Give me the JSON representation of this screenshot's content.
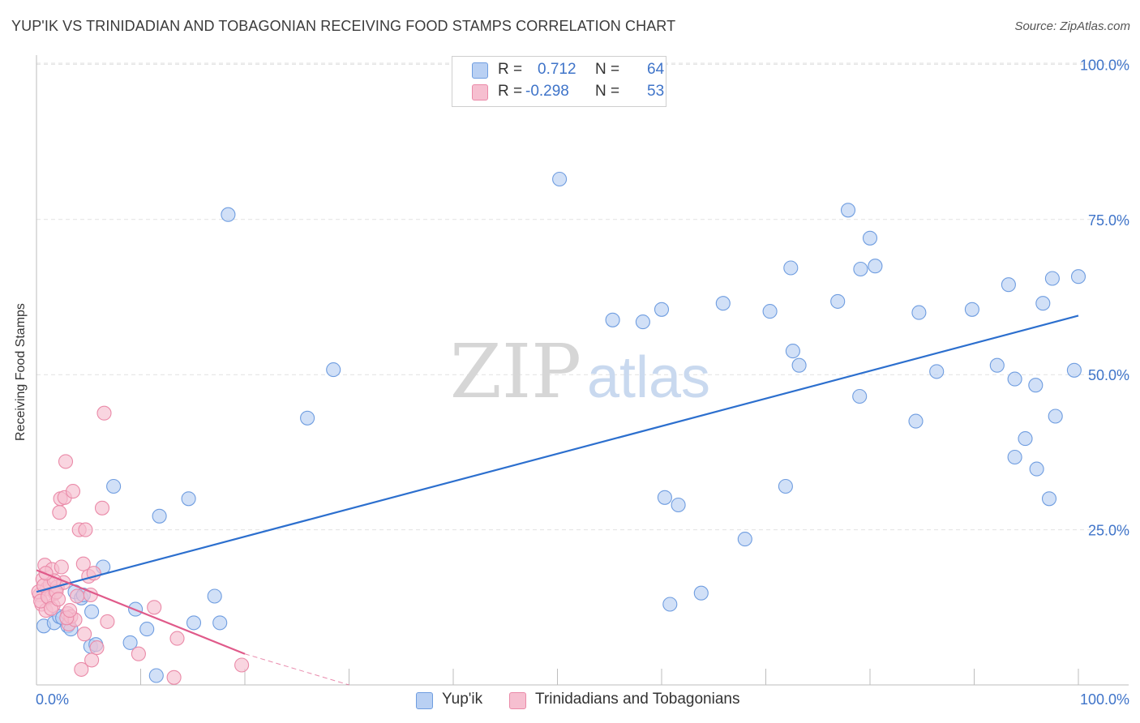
{
  "header": {
    "title": "YUP'IK VS TRINIDADIAN AND TOBAGONIAN RECEIVING FOOD STAMPS CORRELATION CHART",
    "source": "Source: ZipAtlas.com"
  },
  "watermark": {
    "zip": "ZIP",
    "atlas": "atlas"
  },
  "legend": {
    "r_label": "R =",
    "n_label": "N =",
    "rows": [
      {
        "r": "0.712",
        "n": "64"
      },
      {
        "r": "-0.298",
        "n": "53"
      }
    ]
  },
  "colors": {
    "blue_fill": "#b9d0f3",
    "blue_stroke": "#6f9de0",
    "blue_line": "#2c6fce",
    "pink_fill": "#f6bfd0",
    "pink_stroke": "#ea8aa8",
    "pink_line": "#e05a8a",
    "axis_text": "#3f74c9",
    "grid": "#e2e2e2"
  },
  "chart_data": {
    "type": "scatter",
    "title": "YUP'IK VS TRINIDADIAN AND TOBAGONIAN RECEIVING FOOD STAMPS CORRELATION CHART",
    "xlabel": "",
    "ylabel": "Receiving Food Stamps",
    "xlim": [
      0,
      100
    ],
    "ylim": [
      0,
      102
    ],
    "x_tick_labels": [
      "0.0%",
      "100.0%"
    ],
    "y_ticks": [
      25,
      50,
      75,
      100
    ],
    "y_tick_labels": [
      "25.0%",
      "50.0%",
      "75.0%",
      "100.0%"
    ],
    "grid": true,
    "legend_position": "top-center",
    "series": [
      {
        "name": "Yup'ik",
        "r": 0.712,
        "n": 64,
        "trendline": {
          "x": [
            0,
            100
          ],
          "y": [
            15,
            59.5
          ]
        },
        "points": [
          {
            "x": 0.7,
            "y": 9.5
          },
          {
            "x": 1.7,
            "y": 10.0
          },
          {
            "x": 2.2,
            "y": 11.0
          },
          {
            "x": 3.0,
            "y": 9.5
          },
          {
            "x": 3.7,
            "y": 15.0
          },
          {
            "x": 4.3,
            "y": 14.0
          },
          {
            "x": 5.2,
            "y": 6.2
          },
          {
            "x": 5.7,
            "y": 6.5
          },
          {
            "x": 5.3,
            "y": 11.8
          },
          {
            "x": 6.4,
            "y": 19.0
          },
          {
            "x": 7.4,
            "y": 32.0
          },
          {
            "x": 9.0,
            "y": 6.8
          },
          {
            "x": 9.5,
            "y": 12.2
          },
          {
            "x": 10.6,
            "y": 9.0
          },
          {
            "x": 11.5,
            "y": 1.5
          },
          {
            "x": 11.8,
            "y": 27.2
          },
          {
            "x": 14.6,
            "y": 30.0
          },
          {
            "x": 15.1,
            "y": 10.0
          },
          {
            "x": 17.1,
            "y": 14.3
          },
          {
            "x": 17.6,
            "y": 10.0
          },
          {
            "x": 18.4,
            "y": 75.8
          },
          {
            "x": 26.0,
            "y": 43.0
          },
          {
            "x": 28.5,
            "y": 50.8
          },
          {
            "x": 50.2,
            "y": 81.5
          },
          {
            "x": 55.3,
            "y": 58.8
          },
          {
            "x": 58.2,
            "y": 58.5
          },
          {
            "x": 60.0,
            "y": 60.5
          },
          {
            "x": 60.3,
            "y": 30.2
          },
          {
            "x": 60.8,
            "y": 13.0
          },
          {
            "x": 61.6,
            "y": 29.0
          },
          {
            "x": 63.8,
            "y": 14.8
          },
          {
            "x": 65.9,
            "y": 61.5
          },
          {
            "x": 68.0,
            "y": 23.5
          },
          {
            "x": 70.4,
            "y": 60.2
          },
          {
            "x": 72.4,
            "y": 67.2
          },
          {
            "x": 72.6,
            "y": 53.8
          },
          {
            "x": 73.2,
            "y": 51.5
          },
          {
            "x": 71.9,
            "y": 32.0
          },
          {
            "x": 76.9,
            "y": 61.8
          },
          {
            "x": 77.9,
            "y": 76.5
          },
          {
            "x": 79.1,
            "y": 67.0
          },
          {
            "x": 80.0,
            "y": 72.0
          },
          {
            "x": 80.5,
            "y": 67.5
          },
          {
            "x": 79.0,
            "y": 46.5
          },
          {
            "x": 84.7,
            "y": 60.0
          },
          {
            "x": 84.4,
            "y": 42.5
          },
          {
            "x": 86.4,
            "y": 50.5
          },
          {
            "x": 89.8,
            "y": 60.5
          },
          {
            "x": 92.2,
            "y": 51.5
          },
          {
            "x": 93.3,
            "y": 64.5
          },
          {
            "x": 93.9,
            "y": 49.3
          },
          {
            "x": 93.9,
            "y": 36.7
          },
          {
            "x": 94.9,
            "y": 39.7
          },
          {
            "x": 95.9,
            "y": 48.3
          },
          {
            "x": 96.0,
            "y": 34.8
          },
          {
            "x": 96.6,
            "y": 61.5
          },
          {
            "x": 97.5,
            "y": 65.5
          },
          {
            "x": 97.2,
            "y": 30.0
          },
          {
            "x": 99.6,
            "y": 50.7
          },
          {
            "x": 100.0,
            "y": 65.8
          },
          {
            "x": 97.8,
            "y": 43.3
          },
          {
            "x": 3.3,
            "y": 9.0
          },
          {
            "x": 2.5,
            "y": 10.8
          },
          {
            "x": 4.5,
            "y": 14.5
          }
        ]
      },
      {
        "name": "Trinidadians and Tobagonians",
        "r": -0.298,
        "n": 53,
        "trendline": {
          "x": [
            0,
            20
          ],
          "y": [
            18.5,
            5.0
          ],
          "dashed_to": [
            30,
            0
          ]
        },
        "points": [
          {
            "x": 0.3,
            "y": 14.5
          },
          {
            "x": 0.5,
            "y": 13.0
          },
          {
            "x": 0.6,
            "y": 17.0
          },
          {
            "x": 0.8,
            "y": 19.3
          },
          {
            "x": 0.9,
            "y": 12.0
          },
          {
            "x": 1.0,
            "y": 15.5
          },
          {
            "x": 1.2,
            "y": 14.0
          },
          {
            "x": 1.3,
            "y": 16.2
          },
          {
            "x": 1.5,
            "y": 18.6
          },
          {
            "x": 1.6,
            "y": 12.8
          },
          {
            "x": 1.8,
            "y": 14.8
          },
          {
            "x": 2.0,
            "y": 15.8
          },
          {
            "x": 2.2,
            "y": 27.8
          },
          {
            "x": 2.3,
            "y": 30.0
          },
          {
            "x": 2.4,
            "y": 19.0
          },
          {
            "x": 2.6,
            "y": 16.5
          },
          {
            "x": 2.7,
            "y": 30.2
          },
          {
            "x": 2.8,
            "y": 36.0
          },
          {
            "x": 3.0,
            "y": 11.5
          },
          {
            "x": 3.1,
            "y": 9.8
          },
          {
            "x": 3.3,
            "y": 11.0
          },
          {
            "x": 3.5,
            "y": 31.2
          },
          {
            "x": 3.7,
            "y": 10.5
          },
          {
            "x": 3.9,
            "y": 14.3
          },
          {
            "x": 4.1,
            "y": 25.0
          },
          {
            "x": 4.3,
            "y": 2.5
          },
          {
            "x": 4.5,
            "y": 19.5
          },
          {
            "x": 4.6,
            "y": 8.2
          },
          {
            "x": 4.7,
            "y": 25.0
          },
          {
            "x": 5.0,
            "y": 17.5
          },
          {
            "x": 5.2,
            "y": 14.5
          },
          {
            "x": 5.3,
            "y": 4.0
          },
          {
            "x": 5.5,
            "y": 18.0
          },
          {
            "x": 5.8,
            "y": 6.0
          },
          {
            "x": 6.3,
            "y": 28.5
          },
          {
            "x": 6.5,
            "y": 43.8
          },
          {
            "x": 6.8,
            "y": 10.2
          },
          {
            "x": 9.8,
            "y": 5.0
          },
          {
            "x": 11.3,
            "y": 12.5
          },
          {
            "x": 13.2,
            "y": 1.2
          },
          {
            "x": 13.5,
            "y": 7.5
          },
          {
            "x": 19.7,
            "y": 3.2
          },
          {
            "x": 0.2,
            "y": 15.0
          },
          {
            "x": 0.4,
            "y": 13.5
          },
          {
            "x": 0.7,
            "y": 16.0
          },
          {
            "x": 1.1,
            "y": 14.2
          },
          {
            "x": 1.4,
            "y": 12.3
          },
          {
            "x": 1.9,
            "y": 15.0
          },
          {
            "x": 2.1,
            "y": 13.8
          },
          {
            "x": 2.9,
            "y": 10.8
          },
          {
            "x": 3.2,
            "y": 12.0
          },
          {
            "x": 1.7,
            "y": 16.8
          },
          {
            "x": 0.9,
            "y": 18.0
          }
        ]
      }
    ]
  }
}
